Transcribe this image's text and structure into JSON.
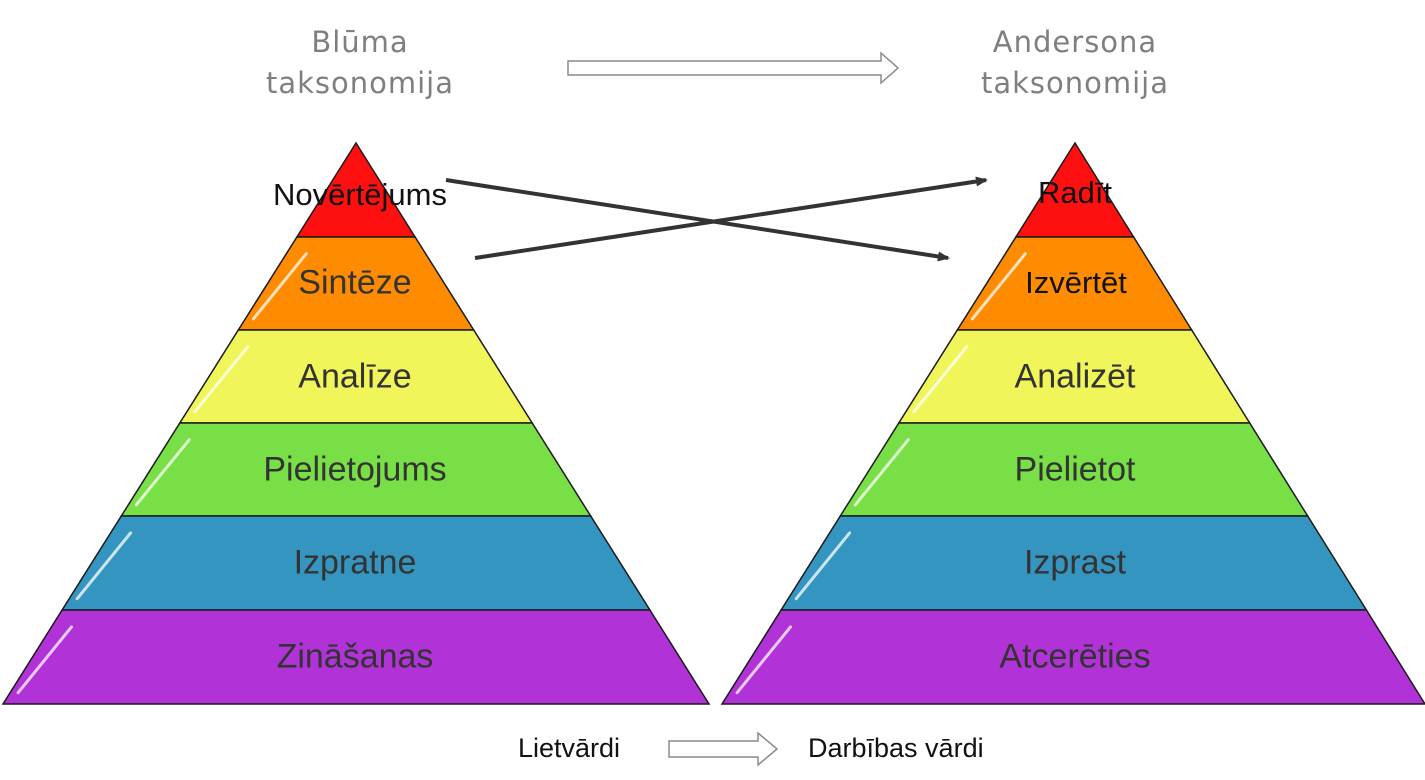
{
  "left_pyramid": {
    "title_line1": "Blūma",
    "title_line2": "taksonomija",
    "levels": [
      "Novērtējums",
      "Sintēze",
      "Analīze",
      "Pielietojums",
      "Izpratne",
      "Zināšanas"
    ]
  },
  "right_pyramid": {
    "title_line1": "Andersona",
    "title_line2": "taksonomija",
    "levels": [
      "Radīt",
      "Izvērtēt",
      "Analizēt",
      "Pielietot",
      "Izprast",
      "Atcerēties"
    ]
  },
  "bottom": {
    "left_label": "Lietvārdi",
    "right_label": "Darbības vārdi"
  },
  "colors": {
    "level_fills": [
      "#ff1010",
      "#ff8c00",
      "#f0f55a",
      "#78e046",
      "#3496c0",
      "#b133d8"
    ],
    "title_text": "#7f7f7f",
    "arrow": "#333333"
  }
}
